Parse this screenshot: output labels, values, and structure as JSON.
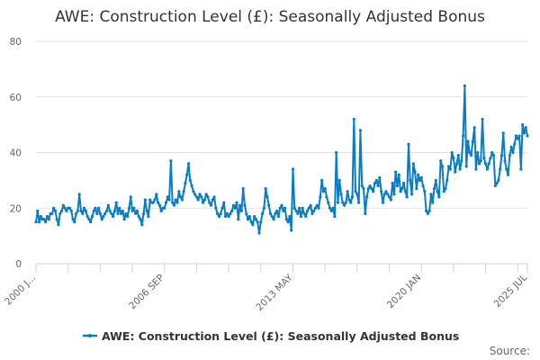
{
  "chart_data": {
    "type": "line",
    "title": "AWE: Construction Level (£): Seasonally Adjusted Bonus",
    "xlabel": "",
    "ylabel": "",
    "ylim": [
      0,
      80
    ],
    "yticks": [
      0,
      20,
      40,
      60,
      80
    ],
    "x_start": "2000 JAN",
    "x_end": "2025 JUL",
    "x_frequency": "monthly",
    "xtick_labels": [
      {
        "index": 0,
        "label": "2000 J..."
      },
      {
        "index": 80,
        "label": "2006 SEP"
      },
      {
        "index": 160,
        "label": "2013 MAY"
      },
      {
        "index": 240,
        "label": "2020 JAN"
      },
      {
        "index": 306,
        "label": "2025 JUL"
      }
    ],
    "grid": true,
    "legend_position": "bottom",
    "series": [
      {
        "name": "AWE: Construction Level (£): Seasonally Adjusted Bonus",
        "color": "#0a7dc2",
        "values": [
          15,
          19,
          15,
          17,
          16,
          16,
          15,
          17,
          16,
          18,
          18,
          20,
          19,
          16,
          14,
          18,
          19,
          21,
          20,
          19,
          20,
          20,
          19,
          16,
          15,
          18,
          19,
          25,
          19,
          18,
          20,
          19,
          17,
          16,
          15,
          17,
          19,
          20,
          18,
          20,
          18,
          16,
          17,
          18,
          19,
          21,
          19,
          18,
          17,
          19,
          22,
          18,
          20,
          18,
          19,
          16,
          18,
          17,
          20,
          24,
          19,
          20,
          18,
          19,
          17,
          16,
          14,
          18,
          23,
          19,
          17,
          23,
          22,
          22,
          23,
          25,
          22,
          21,
          19,
          20,
          20,
          22,
          24,
          23,
          37,
          22,
          21,
          23,
          22,
          26,
          24,
          23,
          26,
          29,
          32,
          36,
          30,
          28,
          26,
          25,
          24,
          23,
          25,
          24,
          22,
          23,
          25,
          24,
          22,
          21,
          23,
          24,
          20,
          18,
          17,
          18,
          20,
          22,
          17,
          18,
          17,
          18,
          19,
          21,
          20,
          22,
          16,
          21,
          19,
          27,
          21,
          18,
          16,
          17,
          15,
          14,
          17,
          16,
          15,
          11,
          15,
          18,
          20,
          27,
          24,
          21,
          18,
          17,
          16,
          18,
          19,
          17,
          20,
          21,
          19,
          20,
          16,
          15,
          17,
          12,
          34,
          20,
          19,
          18,
          20,
          17,
          20,
          18,
          17,
          19,
          20,
          21,
          18,
          19,
          20,
          21,
          20,
          24,
          30,
          26,
          27,
          24,
          22,
          20,
          19,
          20,
          17,
          40,
          22,
          30,
          25,
          22,
          21,
          22,
          26,
          23,
          22,
          24,
          52,
          26,
          25,
          22,
          48,
          28,
          27,
          18,
          24,
          27,
          28,
          27,
          26,
          29,
          30,
          28,
          31,
          26,
          22,
          25,
          26,
          25,
          24,
          23,
          29,
          25,
          33,
          28,
          32,
          26,
          27,
          29,
          26,
          24,
          43,
          30,
          25,
          36,
          33,
          27,
          32,
          30,
          31,
          28,
          26,
          19,
          18,
          19,
          25,
          22,
          27,
          30,
          26,
          24,
          37,
          35,
          26,
          27,
          30,
          35,
          34,
          40,
          38,
          33,
          36,
          39,
          34,
          37,
          46,
          64,
          35,
          44,
          40,
          39,
          44,
          49,
          34,
          40,
          36,
          37,
          52,
          38,
          36,
          34,
          36,
          38,
          40,
          39,
          28,
          29,
          30,
          34,
          39,
          47,
          37,
          34,
          32,
          39,
          42,
          40,
          43,
          46,
          45,
          46,
          34,
          50,
          47,
          49,
          46
        ]
      }
    ]
  },
  "footer": {
    "source_label": "Source:"
  }
}
